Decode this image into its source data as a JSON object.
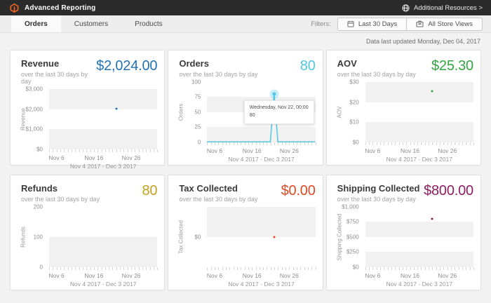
{
  "header": {
    "app_title": "Advanced Reporting",
    "resources_label": "Additional Resources >"
  },
  "tabs": [
    {
      "label": "Orders",
      "active": true
    },
    {
      "label": "Customers",
      "active": false
    },
    {
      "label": "Products",
      "active": false
    }
  ],
  "filters": {
    "label": "Filters:",
    "date_range_button": "Last 30 Days",
    "store_view_button": "All Store Views"
  },
  "status": {
    "last_updated": "Data last updated Monday, Dec 04, 2017"
  },
  "brand": {
    "magento_orange": "#f26322",
    "topbar_bg": "#2b2b2b"
  },
  "chart_data": [
    {
      "type": "scatter",
      "title": "Revenue",
      "subtitle": "over the last 30 days by day",
      "value_display": "$2,024.00",
      "accent": "#2373b4",
      "ylabel": "Revenue",
      "yticks": [
        "$3,000",
        "$2,000",
        "$1,000",
        "$0"
      ],
      "ymin": 0,
      "ymax": 3000,
      "days_total": 30,
      "xticks": [
        {
          "label": "Nov 6",
          "day_index": 2
        },
        {
          "label": "Nov 16",
          "day_index": 12
        },
        {
          "label": "Nov 26",
          "day_index": 22
        }
      ],
      "range_label": "Nov 4 2017 - Dec 3 2017",
      "points": [
        {
          "date": "Nov 22, 2017",
          "day_index": 18,
          "value": 2024
        }
      ]
    },
    {
      "type": "line",
      "title": "Orders",
      "subtitle": "over the last 30 days by day",
      "value_display": "80",
      "accent": "#50c8e4",
      "ylabel": "Orders",
      "yticks": [
        "100",
        "75",
        "50",
        "25",
        "0"
      ],
      "ymin": 0,
      "ymax": 100,
      "days_total": 30,
      "xticks": [
        {
          "label": "Nov 6",
          "day_index": 2
        },
        {
          "label": "Nov 16",
          "day_index": 12
        },
        {
          "label": "Nov 26",
          "day_index": 22
        }
      ],
      "range_label": "Nov 4 2017 - Dec 3 2017",
      "series": [
        {
          "name": "Orders",
          "baseline_value": 0,
          "spike": {
            "date": "Nov 22, 2017",
            "day_index": 18,
            "value": 80
          }
        }
      ],
      "tooltip": {
        "line1": "Wednesday, Nov 22, 00:00",
        "line2": "80"
      }
    },
    {
      "type": "scatter",
      "title": "AOV",
      "subtitle": "over the last 30 days by day",
      "value_display": "$25.30",
      "accent": "#34a543",
      "ylabel": "AOV",
      "yticks": [
        "$30",
        "$20",
        "$10",
        "$0"
      ],
      "ymin": 0,
      "ymax": 30,
      "days_total": 30,
      "xticks": [
        {
          "label": "Nov 6",
          "day_index": 2
        },
        {
          "label": "Nov 16",
          "day_index": 12
        },
        {
          "label": "Nov 26",
          "day_index": 22
        }
      ],
      "range_label": "Nov 4 2017 - Dec 3 2017",
      "points": [
        {
          "date": "Nov 22, 2017",
          "day_index": 18,
          "value": 25.3
        }
      ]
    },
    {
      "type": "scatter",
      "title": "Refunds",
      "subtitle": "over the last 30 days by day",
      "value_display": "80",
      "accent": "#c3a21d",
      "ylabel": "Refunds",
      "yticks": [
        "200",
        "100",
        "0"
      ],
      "ymin": 0,
      "ymax": 200,
      "days_total": 30,
      "xticks": [
        {
          "label": "Nov 6",
          "day_index": 2
        },
        {
          "label": "Nov 16",
          "day_index": 12
        },
        {
          "label": "Nov 26",
          "day_index": 22
        }
      ],
      "range_label": "Nov 4 2017 - Dec 3 2017",
      "points": []
    },
    {
      "type": "scatter",
      "title": "Tax Collected",
      "subtitle": "over the last 30 days by day",
      "value_display": "$0.00",
      "accent": "#df4a26",
      "ylabel": "Tax Collected",
      "yticks": [
        "$0"
      ],
      "zero_line_frac": 0.5,
      "ymin": 0,
      "ymax": 0,
      "days_total": 30,
      "xticks": [
        {
          "label": "Nov 6",
          "day_index": 2
        },
        {
          "label": "Nov 16",
          "day_index": 12
        },
        {
          "label": "Nov 26",
          "day_index": 22
        }
      ],
      "range_label": "Nov 4 2017 - Dec 3 2017",
      "points": [
        {
          "date": "Nov 22, 2017",
          "day_index": 18,
          "value": 0
        }
      ]
    },
    {
      "type": "scatter",
      "title": "Shipping Collected",
      "subtitle": "over the last 30 days by day",
      "value_display": "$800.00",
      "accent": "#8e1e63",
      "ylabel": "Shipping Collected",
      "yticks": [
        "$1,000",
        "$750",
        "$500",
        "$250",
        "$0"
      ],
      "ymin": 0,
      "ymax": 1000,
      "days_total": 30,
      "xticks": [
        {
          "label": "Nov 6",
          "day_index": 2
        },
        {
          "label": "Nov 16",
          "day_index": 12
        },
        {
          "label": "Nov 26",
          "day_index": 22
        }
      ],
      "range_label": "Nov 4 2017 - Dec 3 2017",
      "points": [
        {
          "date": "Nov 22, 2017",
          "day_index": 18,
          "value": 800
        }
      ]
    }
  ]
}
